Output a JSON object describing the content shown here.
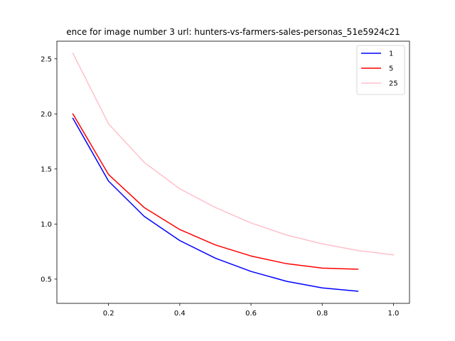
{
  "chart_data": {
    "type": "line",
    "title": "ence for image number 3 url: hunters-vs-farmers-sales-personas_51e5924c21",
    "xlabel": "",
    "ylabel": "",
    "xlim": [
      0.055,
      1.045
    ],
    "ylim": [
      0.28,
      2.66
    ],
    "xticks": [
      0.2,
      0.4,
      0.6,
      0.8,
      1.0
    ],
    "xtick_labels": [
      "0.2",
      "0.4",
      "0.6",
      "0.8",
      "1.0"
    ],
    "yticks": [
      0.5,
      1.0,
      1.5,
      2.0,
      2.5
    ],
    "ytick_labels": [
      "0.5",
      "1.0",
      "1.5",
      "2.0",
      "2.5"
    ],
    "grid": false,
    "legend_position": "top-right",
    "series": [
      {
        "name": "1",
        "color": "#0000ff",
        "x": [
          0.1,
          0.2,
          0.3,
          0.4,
          0.5,
          0.6,
          0.7,
          0.8,
          0.9
        ],
        "y": [
          1.96,
          1.39,
          1.07,
          0.85,
          0.69,
          0.57,
          0.48,
          0.42,
          0.39
        ]
      },
      {
        "name": "5",
        "color": "#ff0000",
        "x": [
          0.1,
          0.2,
          0.3,
          0.4,
          0.5,
          0.6,
          0.7,
          0.8,
          0.9
        ],
        "y": [
          2.0,
          1.45,
          1.15,
          0.95,
          0.81,
          0.71,
          0.64,
          0.6,
          0.59
        ]
      },
      {
        "name": "25",
        "color": "#ffc0cb",
        "x": [
          0.1,
          0.2,
          0.3,
          0.4,
          0.5,
          0.6,
          0.7,
          0.8,
          0.9,
          1.0
        ],
        "y": [
          2.55,
          1.91,
          1.56,
          1.32,
          1.15,
          1.01,
          0.9,
          0.82,
          0.76,
          0.72
        ]
      }
    ]
  }
}
